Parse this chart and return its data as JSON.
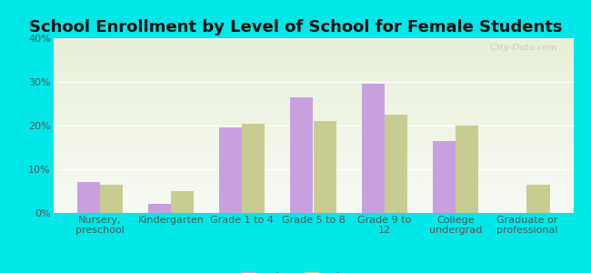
{
  "title": "School Enrollment by Level of School for Female Students",
  "categories": [
    "Nursery,\npreschool",
    "Kindergarten",
    "Grade 1 to 4",
    "Grade 5 to 8",
    "Grade 9 to\n12",
    "College\nundergrad",
    "Graduate or\nprofessional"
  ],
  "foley_values": [
    7,
    2,
    19.5,
    26.5,
    29.5,
    16.5,
    0
  ],
  "minnesota_values": [
    6.5,
    5,
    20.5,
    21,
    22.5,
    20,
    6.5
  ],
  "foley_color": "#c8a0e0",
  "minnesota_color": "#c8cc90",
  "background_color": "#00e8e8",
  "ylim": [
    0,
    40
  ],
  "yticks": [
    0,
    10,
    20,
    30,
    40
  ],
  "ytick_labels": [
    "0%",
    "10%",
    "20%",
    "30%",
    "40%"
  ],
  "title_fontsize": 13,
  "tick_fontsize": 8,
  "legend_fontsize": 9,
  "bar_width": 0.32
}
